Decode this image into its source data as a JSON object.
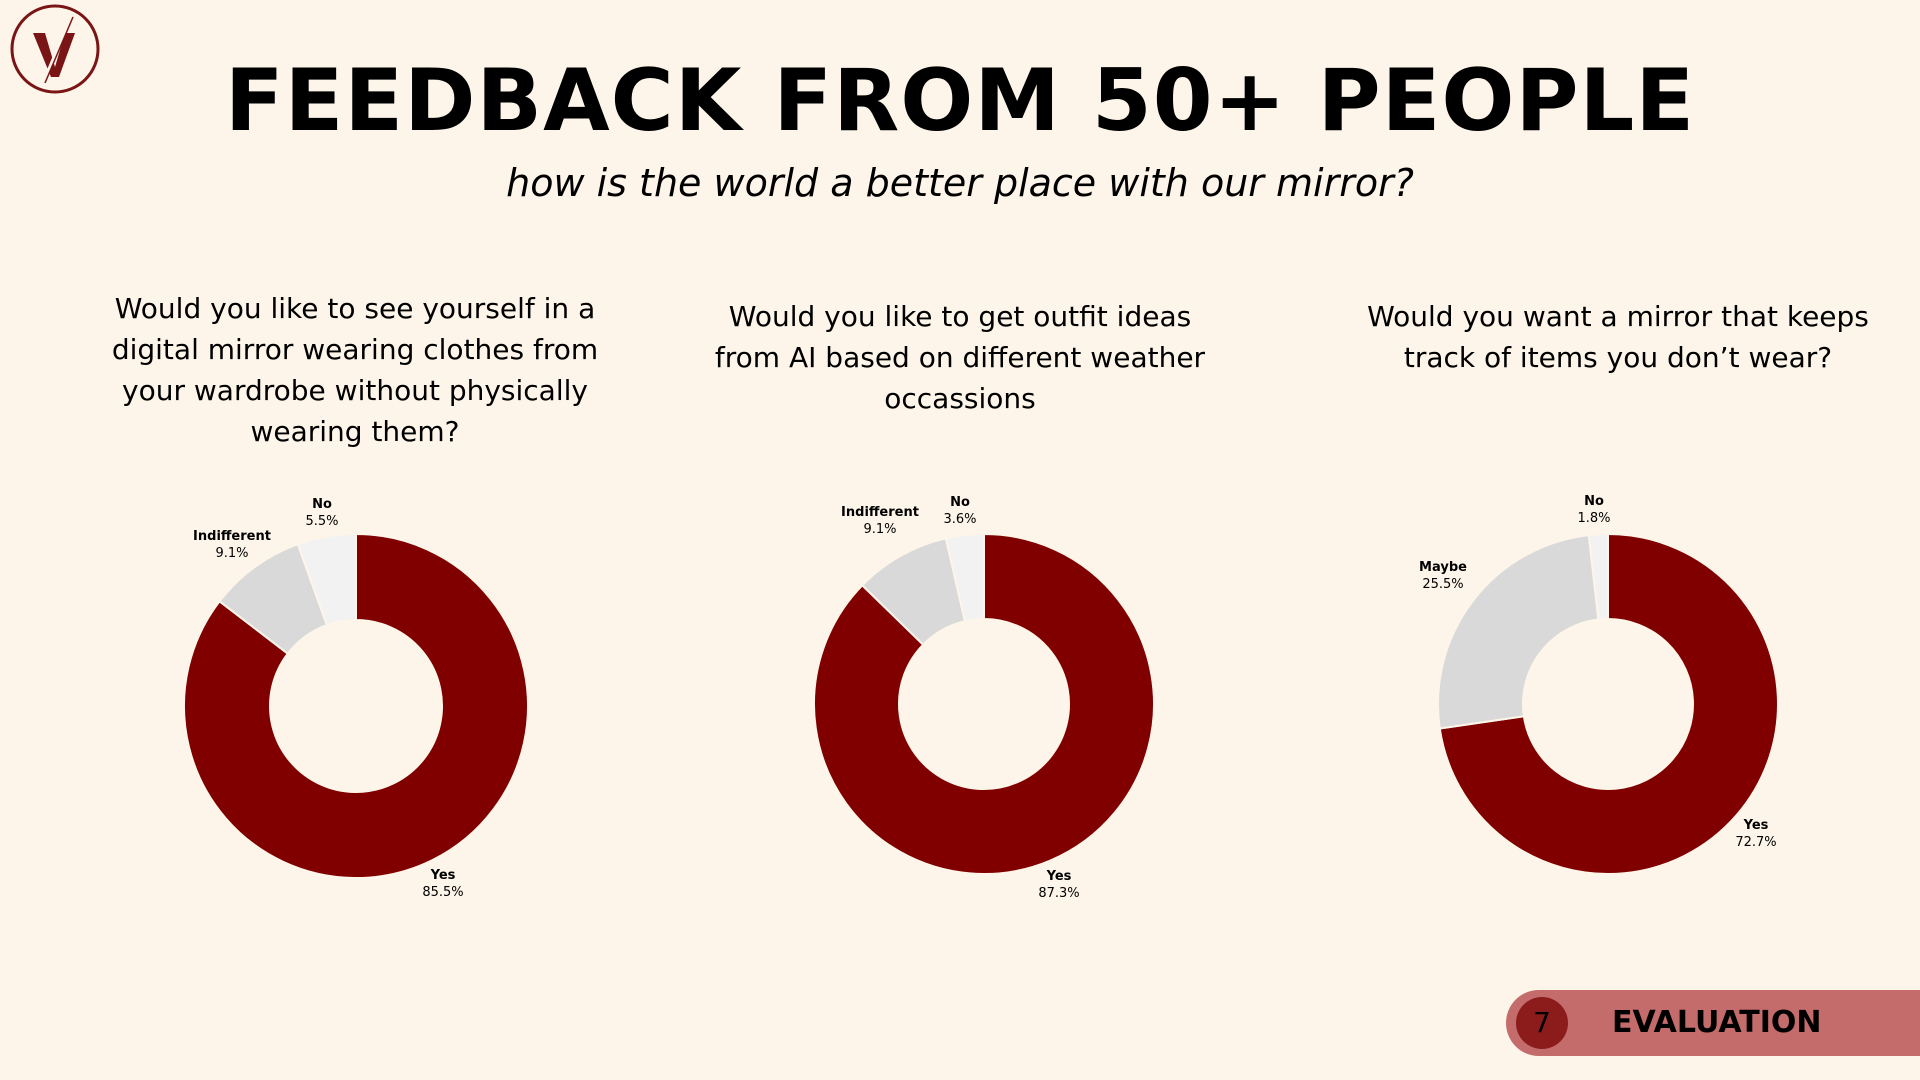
{
  "header": {
    "title": "FEEDBACK FROM 50+ PEOPLE",
    "subtitle": "how is the world a better place with our mirror?"
  },
  "logo": {
    "icon": "v-logo-icon",
    "letter": "V",
    "color": "#7a1515"
  },
  "footer": {
    "page_number": "7",
    "section": "EVALUATION"
  },
  "colors": {
    "background": "#fdf5e9",
    "yes": "#800000",
    "middle": "#d9d9d9",
    "no": "#f2f2f2",
    "footer_bar": "#c46b6b",
    "page_badge": "#8c1c1c"
  },
  "chart_data": [
    {
      "type": "pie",
      "title": "Would you like to see yourself in a digital mirror wearing clothes from your wardrobe without physically wearing them?",
      "series": [
        {
          "name": "Yes",
          "value": 85.5,
          "value_label": "85.5%",
          "color": "#800000"
        },
        {
          "name": "Indifferent",
          "value": 9.1,
          "value_label": "9.1%",
          "color": "#d9d9d9"
        },
        {
          "name": "No",
          "value": 5.5,
          "value_label": "5.5%",
          "color": "#f2f2f2"
        }
      ]
    },
    {
      "type": "pie",
      "title": "Would you like to get outfit ideas from AI based on different weather occassions",
      "series": [
        {
          "name": "Yes",
          "value": 87.3,
          "value_label": "87.3%",
          "color": "#800000"
        },
        {
          "name": "Indifferent",
          "value": 9.1,
          "value_label": "9.1%",
          "color": "#d9d9d9"
        },
        {
          "name": "No",
          "value": 3.6,
          "value_label": "3.6%",
          "color": "#f2f2f2"
        }
      ]
    },
    {
      "type": "pie",
      "title": "Would you want a mirror that keeps track of items you don’t wear?",
      "series": [
        {
          "name": "Yes",
          "value": 72.7,
          "value_label": "72.7%",
          "color": "#800000"
        },
        {
          "name": "Maybe",
          "value": 25.5,
          "value_label": "25.5%",
          "color": "#d9d9d9"
        },
        {
          "name": "No",
          "value": 1.8,
          "value_label": "1.8%",
          "color": "#f2f2f2"
        }
      ]
    }
  ]
}
